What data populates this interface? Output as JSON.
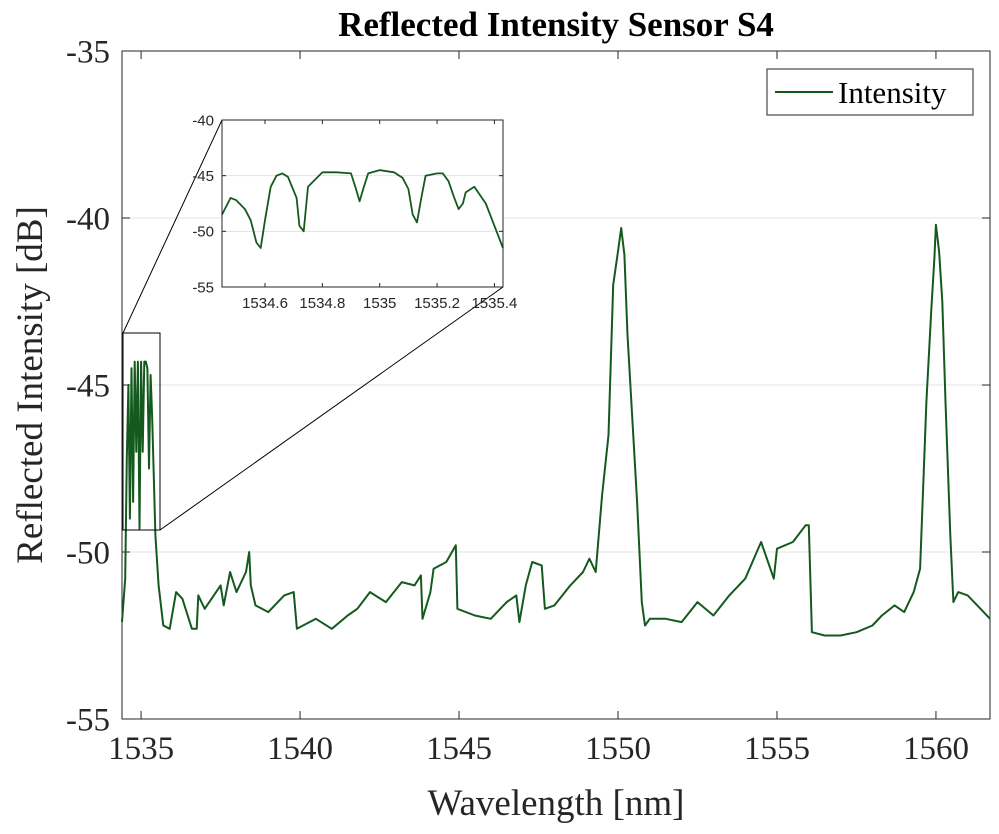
{
  "chart_data": [
    {
      "type": "line",
      "title": "Reflected Intensity Sensor S4",
      "xlabel": "Wavelength [nm]",
      "ylabel": "Reflected Intensity [dB]",
      "xlim": [
        1534.4,
        1561.7
      ],
      "ylim": [
        -55,
        -35
      ],
      "xticks": [
        1535,
        1540,
        1545,
        1550,
        1555,
        1560
      ],
      "xtick_labels": [
        "1535",
        "1540",
        "1545",
        "1550",
        "1555",
        "1560"
      ],
      "yticks": [
        -35,
        -40,
        -45,
        -50,
        -55
      ],
      "ytick_labels": [
        "-35",
        "-40",
        "-45",
        "-50",
        "-55"
      ],
      "grid": "horizontal",
      "legend": "top-right",
      "series": [
        {
          "name": "Intensity",
          "color": "#145a1e",
          "x": [
            1534.4,
            1534.5,
            1534.55,
            1534.6,
            1534.65,
            1534.7,
            1534.75,
            1534.8,
            1534.85,
            1534.9,
            1534.95,
            1535.0,
            1535.05,
            1535.1,
            1535.15,
            1535.2,
            1535.25,
            1535.3,
            1535.35,
            1535.45,
            1535.55,
            1535.7,
            1535.9,
            1536.1,
            1536.3,
            1536.6,
            1536.75,
            1536.8,
            1537.0,
            1537.5,
            1537.6,
            1537.8,
            1538.0,
            1538.3,
            1538.4,
            1538.45,
            1538.6,
            1539.0,
            1539.5,
            1539.8,
            1539.9,
            1540.5,
            1541.0,
            1541.5,
            1541.8,
            1542.2,
            1542.7,
            1543.2,
            1543.6,
            1543.8,
            1543.85,
            1544.1,
            1544.2,
            1544.6,
            1544.9,
            1544.95,
            1545.5,
            1546.0,
            1546.5,
            1546.8,
            1546.9,
            1547.1,
            1547.3,
            1547.6,
            1547.7,
            1548.0,
            1548.5,
            1548.9,
            1549.1,
            1549.3,
            1549.5,
            1549.7,
            1549.85,
            1550.0,
            1550.1,
            1550.2,
            1550.3,
            1550.45,
            1550.6,
            1550.75,
            1550.85,
            1551.0,
            1551.5,
            1552.0,
            1552.5,
            1553.0,
            1553.5,
            1554.0,
            1554.5,
            1554.9,
            1555.0,
            1555.5,
            1555.9,
            1556.0,
            1556.1,
            1556.5,
            1557.0,
            1557.5,
            1558.0,
            1558.3,
            1558.7,
            1559.0,
            1559.3,
            1559.5,
            1559.7,
            1559.85,
            1559.95,
            1560.0,
            1560.1,
            1560.2,
            1560.3,
            1560.45,
            1560.55,
            1560.7,
            1561.0,
            1561.3,
            1561.7
          ],
          "y": [
            -52.1,
            -50.8,
            -47.2,
            -45.0,
            -49.0,
            -44.5,
            -48.5,
            -44.3,
            -47.0,
            -44.3,
            -49.3,
            -44.3,
            -47.0,
            -44.3,
            -44.3,
            -44.5,
            -47.5,
            -44.7,
            -46.0,
            -49.5,
            -51.0,
            -52.2,
            -52.3,
            -51.2,
            -51.4,
            -52.3,
            -52.3,
            -51.3,
            -51.7,
            -51.0,
            -51.6,
            -50.6,
            -51.2,
            -50.6,
            -50.0,
            -51.0,
            -51.6,
            -51.8,
            -51.3,
            -51.2,
            -52.3,
            -52.0,
            -52.3,
            -51.9,
            -51.7,
            -51.2,
            -51.5,
            -50.9,
            -51.0,
            -50.7,
            -52.0,
            -51.2,
            -50.5,
            -50.3,
            -49.8,
            -51.7,
            -51.9,
            -52.0,
            -51.5,
            -51.3,
            -52.1,
            -51.0,
            -50.3,
            -50.4,
            -51.7,
            -51.6,
            -51.0,
            -50.6,
            -50.2,
            -50.6,
            -48.3,
            -46.5,
            -42.0,
            -41.0,
            -40.3,
            -41.1,
            -43.5,
            -46.0,
            -48.5,
            -51.5,
            -52.2,
            -52.0,
            -52.0,
            -52.1,
            -51.5,
            -51.9,
            -51.3,
            -50.8,
            -49.7,
            -50.8,
            -49.9,
            -49.7,
            -49.2,
            -49.2,
            -52.4,
            -52.5,
            -52.5,
            -52.4,
            -52.2,
            -51.9,
            -51.6,
            -51.8,
            -51.2,
            -50.5,
            -45.5,
            -42.8,
            -41.2,
            -40.2,
            -41.0,
            -42.5,
            -45.5,
            -49.5,
            -51.5,
            -51.2,
            -51.3,
            -51.6,
            -52.0
          ]
        }
      ]
    },
    {
      "type": "line",
      "title": "",
      "xlim": [
        1534.45,
        1535.43
      ],
      "ylim": [
        -55,
        -40
      ],
      "xticks": [
        1534.6,
        1534.8,
        1535,
        1535.2,
        1535.4
      ],
      "xtick_labels": [
        "1534.6",
        "1534.8",
        "1535",
        "1535.2",
        "1535.4"
      ],
      "yticks": [
        -40,
        -45,
        -50,
        -55
      ],
      "ytick_labels": [
        "-40",
        "-45",
        "-50",
        "-55"
      ],
      "grid": "horizontal",
      "series": [
        {
          "color": "#145a1e",
          "x": [
            1534.45,
            1534.48,
            1534.5,
            1534.53,
            1534.55,
            1534.57,
            1534.585,
            1534.6,
            1534.62,
            1534.64,
            1534.66,
            1534.68,
            1534.71,
            1534.72,
            1534.735,
            1534.75,
            1534.8,
            1534.85,
            1534.9,
            1534.915,
            1534.93,
            1534.945,
            1534.96,
            1535.0,
            1535.05,
            1535.08,
            1535.1,
            1535.115,
            1535.13,
            1535.145,
            1535.16,
            1535.2,
            1535.22,
            1535.24,
            1535.26,
            1535.275,
            1535.29,
            1535.3,
            1535.33,
            1535.37,
            1535.4,
            1535.43
          ],
          "y": [
            -48.5,
            -47.0,
            -47.2,
            -48.0,
            -49.0,
            -51.0,
            -51.5,
            -49.0,
            -46.0,
            -45.0,
            -44.8,
            -45.1,
            -47.0,
            -49.5,
            -50.0,
            -46.0,
            -44.7,
            -44.7,
            -44.8,
            -46.0,
            -47.3,
            -46.0,
            -44.8,
            -44.5,
            -44.7,
            -45.2,
            -46.2,
            -48.5,
            -49.2,
            -47.0,
            -45.0,
            -44.8,
            -44.8,
            -45.5,
            -47.0,
            -48.0,
            -47.5,
            -46.5,
            -46.0,
            -47.5,
            -49.5,
            -51.5
          ]
        }
      ]
    }
  ]
}
